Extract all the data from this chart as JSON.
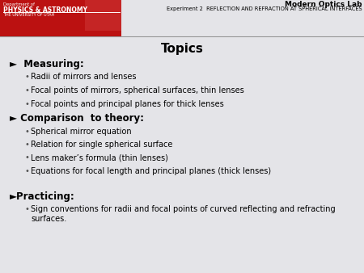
{
  "title": "Topics",
  "header_lab": "Modern Optics Lab",
  "header_exp": "Experiment 2  REFLECTION AND REFRACTION AT SPHERICAL INTERFACES",
  "header_dept": "Department of",
  "header_phys": "PHYSICS & ASTRONOMY",
  "header_univ": "THE UNIVERSITY OF UTAH",
  "bg_color": "#e4e4e8",
  "header_bg": "#bb1111",
  "sections": [
    {
      "heading": "►  Measuring:",
      "bullets": [
        "Radii of mirrors and lenses",
        "Focal points of mirrors, spherical surfaces, thin lenses",
        "Focal points and principal planes for thick lenses"
      ]
    },
    {
      "heading": "► Comparison  to theory:",
      "bullets": [
        "Spherical mirror equation",
        "Relation for single spherical surface",
        "Lens maker’s formula (thin lenses)",
        "Equations for focal length and principal planes (thick lenses)"
      ]
    },
    {
      "heading": "►Practicing:",
      "bullets": [
        "Sign conventions for radii and focal points of curved reflecting and refracting surfaces."
      ]
    }
  ],
  "title_fontsize": 11,
  "heading_fontsize": 8.5,
  "bullet_fontsize": 7.0,
  "header_fontsize_lab": 6.5,
  "header_fontsize_exp": 4.8,
  "header_dept_fs": 3.8,
  "header_phys_fs": 5.5,
  "header_univ_fs": 3.5
}
